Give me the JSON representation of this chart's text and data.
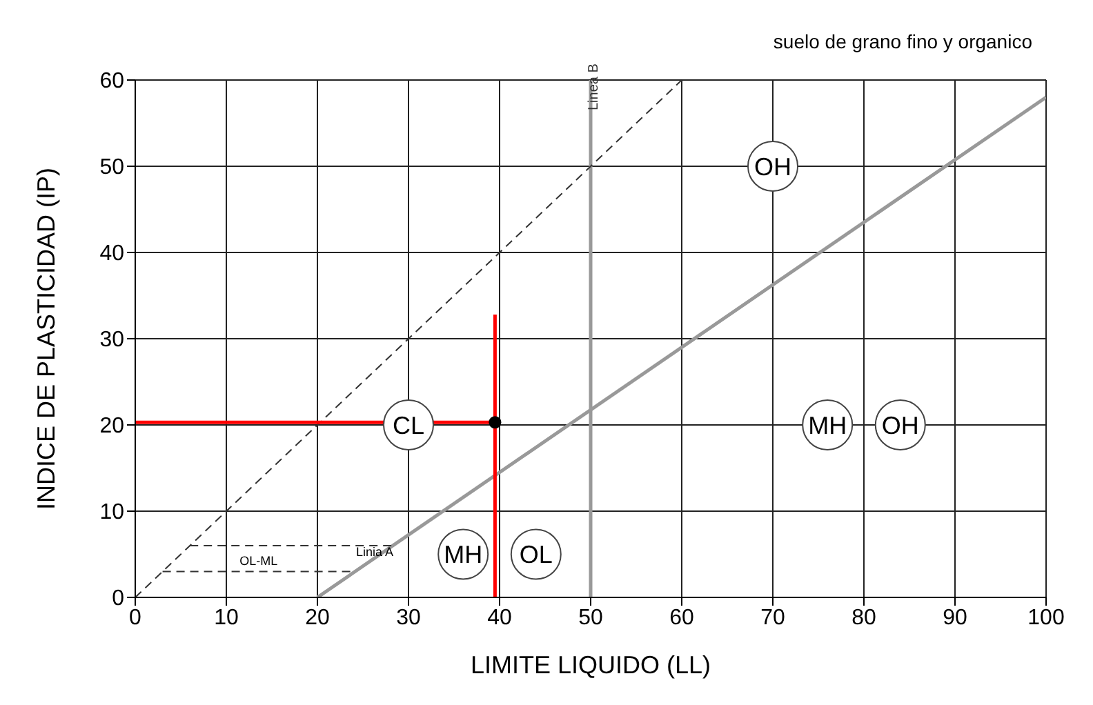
{
  "chart_data": {
    "type": "line",
    "title": "suelo de grano fino y organico",
    "xlabel": "LIMITE LIQUIDO (LL)",
    "ylabel": "INDICE DE PLASTICIDAD (IP)",
    "xlim": [
      0,
      100
    ],
    "ylim": [
      0,
      60
    ],
    "xticks": [
      0,
      10,
      20,
      30,
      40,
      50,
      60,
      70,
      80,
      90,
      100
    ],
    "yticks": [
      0,
      10,
      20,
      30,
      40,
      50,
      60
    ],
    "grid": true,
    "legend": false,
    "marker": "none",
    "series": [
      {
        "name": "Linia A",
        "color": "#999999",
        "x": [
          20,
          100
        ],
        "values": [
          0,
          58
        ],
        "line_style": "solid"
      },
      {
        "color": "#333333",
        "x": [
          0,
          60
        ],
        "values": [
          0,
          60
        ],
        "line_style": "dashed"
      },
      {
        "name": "OL-ML",
        "color": "#333333",
        "x": [
          6,
          28.2
        ],
        "values": [
          6,
          6
        ],
        "line_style": "dashed"
      },
      {
        "color": "#333333",
        "x": [
          3,
          24.1
        ],
        "values": [
          3,
          3
        ],
        "line_style": "dashed"
      },
      {
        "color": "#ff0000",
        "x": [
          0,
          39.5
        ],
        "values": [
          20.3,
          20.3
        ],
        "line_style": "solid"
      },
      {
        "color": "#ff0000",
        "x": [
          39.5,
          39.5
        ],
        "values": [
          0,
          32.8
        ],
        "line_style": "solid"
      },
      {
        "type": "scatter",
        "color": "#000000",
        "x": [
          39.5
        ],
        "values": [
          20.3
        ],
        "marker": "circle"
      }
    ],
    "ref_lines": [
      {
        "axis": "x",
        "value": 50,
        "label": "Linea B",
        "color": "#999999"
      }
    ],
    "annotations": [
      {
        "text": "OH",
        "x": 70,
        "y": 50
      },
      {
        "text": "CL",
        "x": 30,
        "y": 20
      },
      {
        "text": "MH",
        "x": 76,
        "y": 20
      },
      {
        "text": "OH",
        "x": 84,
        "y": 20
      },
      {
        "text": "MH",
        "x": 36,
        "y": 5
      },
      {
        "text": "OL",
        "x": 44,
        "y": 5
      }
    ]
  }
}
